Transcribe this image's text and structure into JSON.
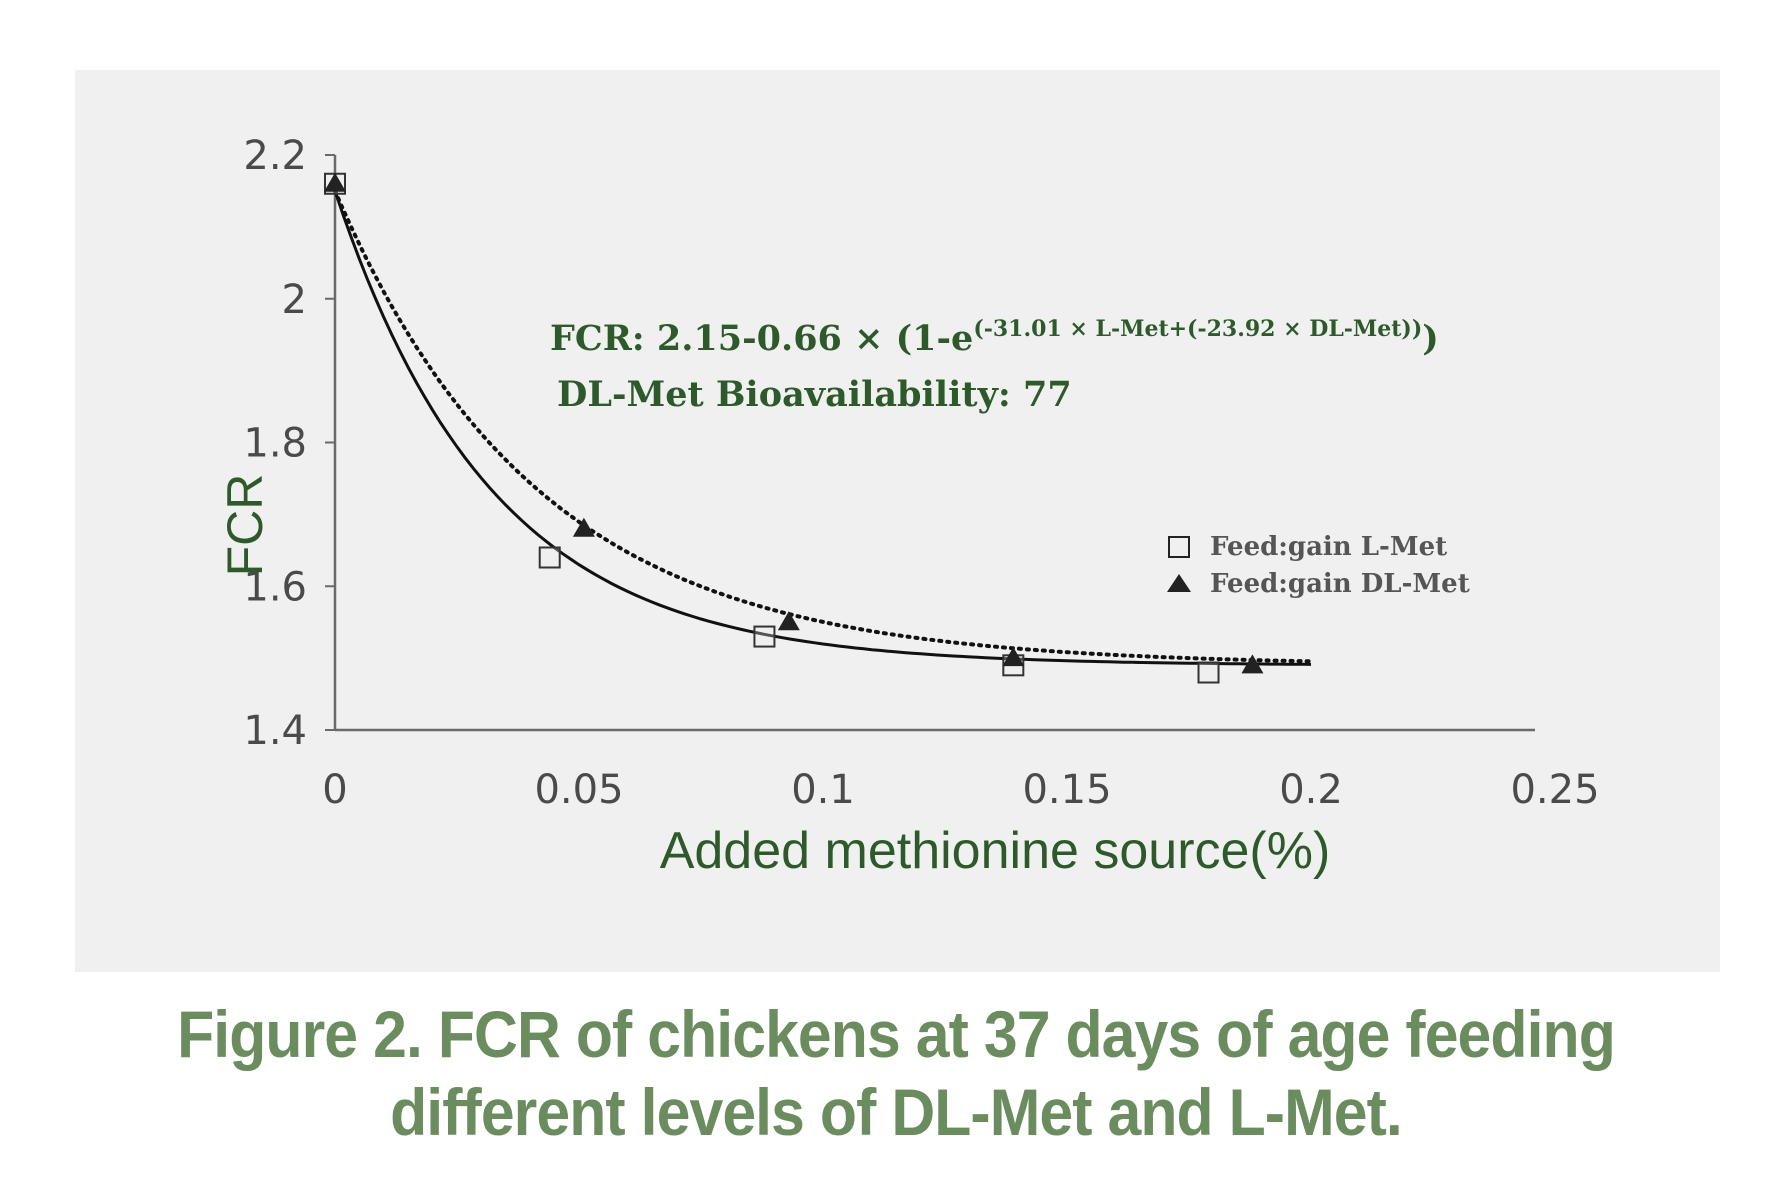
{
  "chart_data": {
    "type": "scatter",
    "title": "",
    "xlabel": "Added methionine source(%)",
    "ylabel": "FCR",
    "xlim": [
      0,
      0.25
    ],
    "ylim": [
      1.4,
      2.2
    ],
    "x_ticks": [
      "0",
      "0.05",
      "0.1",
      "0.15",
      "0.2",
      "0.25"
    ],
    "y_ticks": [
      "1.4",
      "1.6",
      "1.8",
      "2",
      "2.2"
    ],
    "grid": false,
    "legend_position": "right",
    "series": [
      {
        "name": "Feed:gain L-Met",
        "marker": "open-square",
        "x": [
          0,
          0.044,
          0.088,
          0.139,
          0.179
        ],
        "y": [
          2.16,
          1.64,
          1.53,
          1.49,
          1.48
        ],
        "fit": "solid",
        "fit_rate": 31.01
      },
      {
        "name": "Feed:gain DL-Met",
        "marker": "filled-triangle",
        "x": [
          0,
          0.051,
          0.093,
          0.139,
          0.188
        ],
        "y": [
          2.16,
          1.68,
          1.55,
          1.5,
          1.49
        ],
        "fit": "dotted",
        "fit_rate": 23.92
      }
    ],
    "fit_model": {
      "intercept": 2.15,
      "amplitude": 0.66,
      "x_max": 0.2
    },
    "annotations": {
      "equation_main": "FCR: 2.15-0.66 ×  (1-e",
      "equation_exponent": "(-31.01 × L-Met+(-23.92 × DL-Met))",
      "equation_close": ")",
      "bioavailability": "DL-Met Bioavailability: 77"
    },
    "colors": {
      "panel_background": "#f0f0f0",
      "title_green": "#2e5a2b",
      "caption_green": "#6b8c5e",
      "marker": "#222222"
    }
  },
  "caption": {
    "line1": "Figure 2. FCR of chickens at 37 days of age feeding",
    "line2": "different levels of DL-Met and L-Met."
  }
}
